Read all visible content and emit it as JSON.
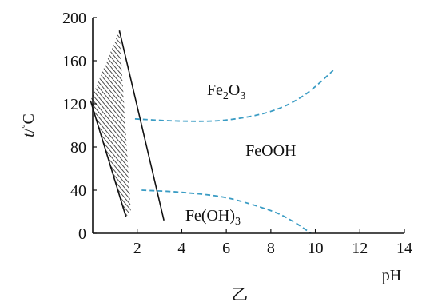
{
  "chart_data": {
    "type": "phase-diagram",
    "xlabel": "pH",
    "ylabel_t": "t",
    "ylabel_sep": "/",
    "ylabel_unit": "C",
    "caption": "乙",
    "xlim": [
      0,
      14
    ],
    "ylim": [
      0,
      200
    ],
    "xticks": [
      "2",
      "4",
      "6",
      "8",
      "10",
      "12",
      "14"
    ],
    "yticks": [
      "0",
      "40",
      "80",
      "120",
      "160",
      "200"
    ],
    "regions": [
      {
        "formula": "Fe2O3",
        "base": "Fe",
        "s1": "2",
        "mid": "O",
        "s2": "3",
        "tail": "",
        "x": 6.0,
        "y": 128
      },
      {
        "formula": "FeOOH",
        "base": "FeOOH",
        "s1": "",
        "mid": "",
        "s2": "",
        "tail": "",
        "x": 8.0,
        "y": 72
      },
      {
        "formula": "Fe(OH)3",
        "base": "Fe(OH)",
        "s1": "3",
        "mid": "",
        "s2": "",
        "tail": "",
        "x": 5.4,
        "y": 12
      }
    ],
    "hatched_band": {
      "left_boundary": [
        [
          -0.1,
          123
        ],
        [
          1.2,
          188
        ]
      ],
      "right_boundary": [
        [
          1.5,
          15
        ],
        [
          3.2,
          12
        ]
      ],
      "edge": [
        [
          -0.1,
          123
        ],
        [
          1.5,
          15
        ]
      ]
    },
    "boundary_line": [
      [
        1.2,
        188
      ],
      [
        3.2,
        12
      ]
    ],
    "dashed_upper": [
      [
        1.9,
        106
      ],
      [
        4.0,
        104
      ],
      [
        6.0,
        105
      ],
      [
        8.0,
        113
      ],
      [
        9.5,
        128
      ],
      [
        10.8,
        151
      ]
    ],
    "dashed_lower": [
      [
        2.2,
        40
      ],
      [
        4.0,
        38
      ],
      [
        6.0,
        33
      ],
      [
        8.0,
        21
      ],
      [
        9.0,
        11
      ],
      [
        9.8,
        0
      ]
    ],
    "colors": {
      "axis": "#111111",
      "dashed": "#3a9cc4",
      "hatch": "#222222"
    }
  }
}
